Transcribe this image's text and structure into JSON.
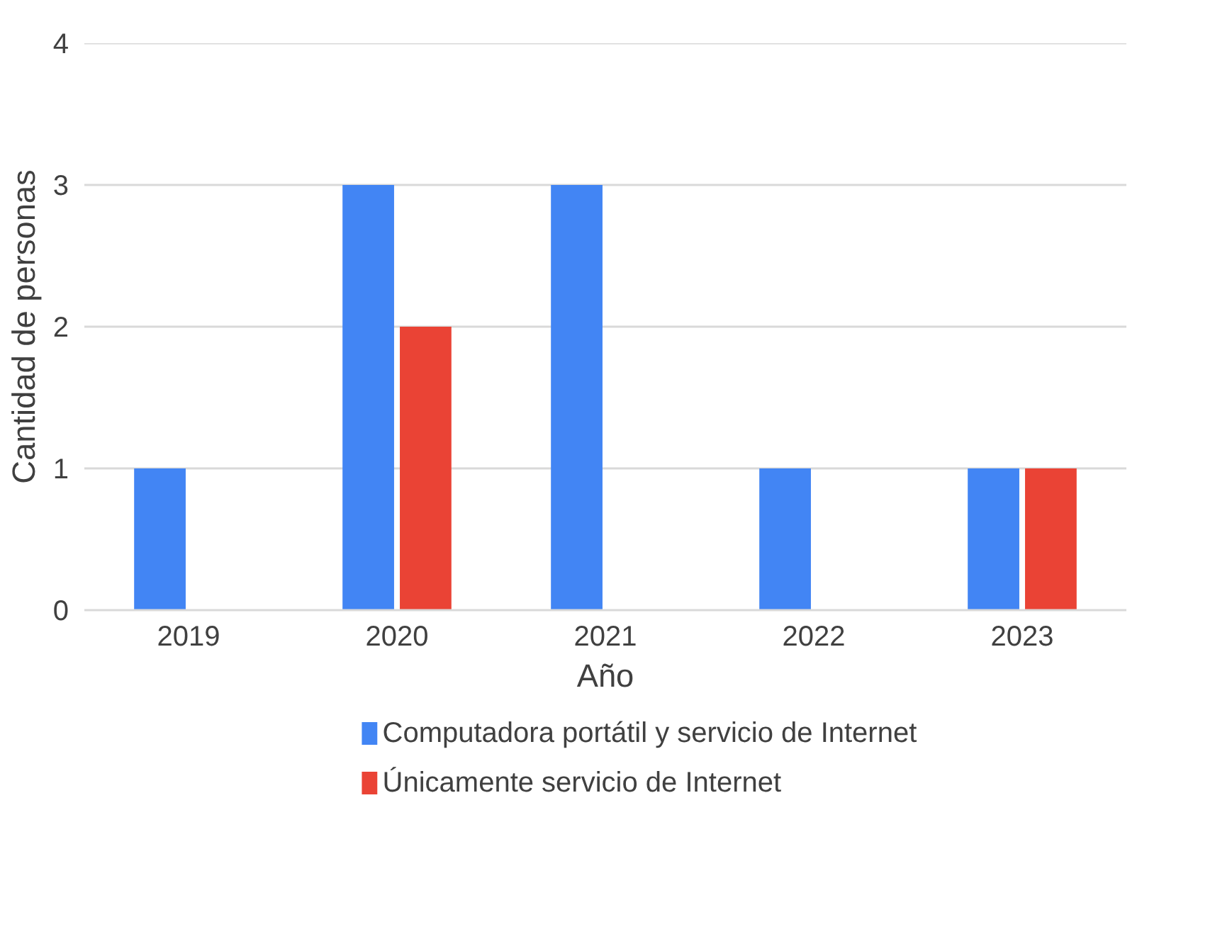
{
  "chart_data": {
    "type": "bar",
    "xlabel": "Año",
    "ylabel": "Cantidad de personas",
    "categories": [
      "2019",
      "2020",
      "2021",
      "2022",
      "2023"
    ],
    "series": [
      {
        "name": "Computadora portátil y servicio de Internet",
        "color": "#4285f4",
        "values": [
          1,
          3,
          3,
          1,
          1
        ]
      },
      {
        "name": "Únicamente servicio de Internet",
        "color": "#ea4335",
        "values": [
          0,
          2,
          0,
          0,
          1
        ]
      }
    ],
    "ylim": [
      0,
      4
    ],
    "yticks": [
      0,
      1,
      2,
      3,
      4
    ],
    "grid": "y",
    "legend": "bottom"
  }
}
